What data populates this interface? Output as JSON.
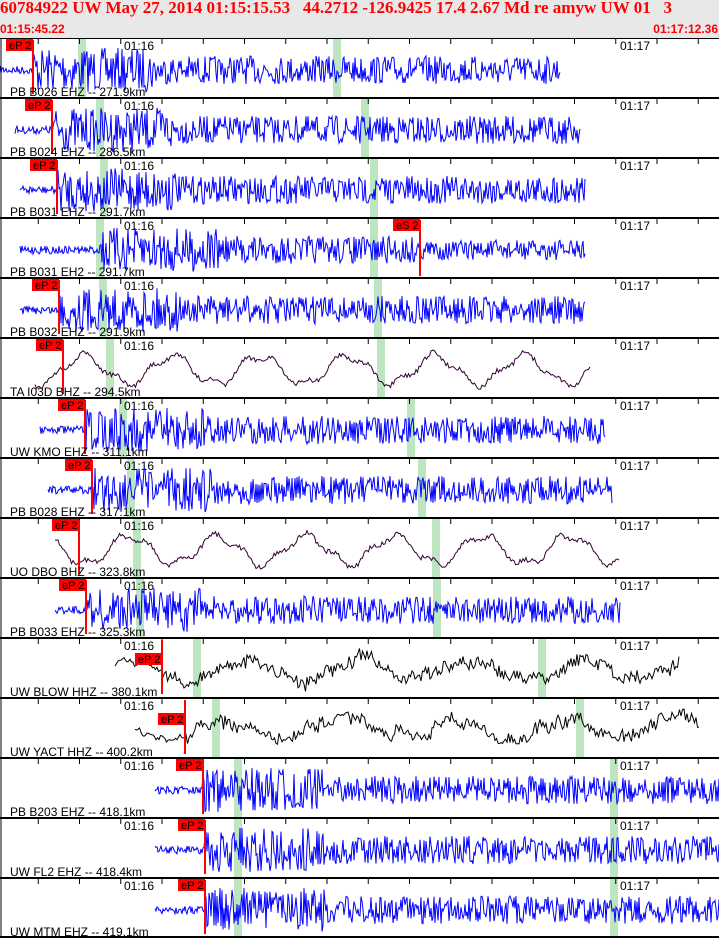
{
  "header": {
    "title": "60784922 UW May 27, 2014 01:15:15.53   44.2712 -126.9425 17.4 2.67 Md re amyw UW 01   3",
    "start_time": "01:15:45.22",
    "end_time": "01:17:12.36"
  },
  "time_labels": [
    "01:16",
    "01:17"
  ],
  "colors": {
    "header_text": "#ff0000",
    "short_period": "#0000ff",
    "broadband": "#330033",
    "hhz": "#000000",
    "pick": "#ff0000",
    "theoretical_arrival": "#bde5c0"
  },
  "traces": [
    {
      "label": "PB B026 EHZ -- 271.9km",
      "pick": "eP 2",
      "color": "#0000ff"
    },
    {
      "label": "PB B024 EHZ -- 286.5km",
      "pick": "eP 2",
      "color": "#0000ff"
    },
    {
      "label": "PB B031 EHZ -- 291.7km",
      "pick": "eP 2",
      "color": "#0000ff"
    },
    {
      "label": "PB B031 EH2 -- 291.7km",
      "pick": "eS 2",
      "color": "#0000ff"
    },
    {
      "label": "PB B032 EHZ -- 291.9km",
      "pick": "eP 2",
      "color": "#0000ff"
    },
    {
      "label": "TA I03D BHZ -- 294.5km",
      "pick": "eP 2",
      "color": "#330033"
    },
    {
      "label": "UW KMO EHZ -- 311.1km",
      "pick": "eP 2",
      "color": "#0000ff"
    },
    {
      "label": "PB B028 EHZ -- 317.1km",
      "pick": "eP 2",
      "color": "#0000ff"
    },
    {
      "label": "UO DBO BHZ -- 323.8km",
      "pick": "eP 2",
      "color": "#330033"
    },
    {
      "label": "PB B033 EHZ -- 325.3km",
      "pick": "eP 2",
      "color": "#0000ff"
    },
    {
      "label": "UW BLOW HHZ -- 380.1km",
      "pick": "eP 2",
      "color": "#000000"
    },
    {
      "label": "UW YACT HHZ -- 400.2km",
      "pick": "eP 2",
      "color": "#000000"
    },
    {
      "label": "PB B203 EHZ -- 418.1km",
      "pick": "eP 2",
      "color": "#0000ff"
    },
    {
      "label": "UW FL2 EHZ -- 418.4km",
      "pick": "eP 2",
      "color": "#0000ff"
    },
    {
      "label": "UW MTM EHZ -- 419.1km",
      "pick": "eP 2",
      "color": "#0000ff"
    }
  ]
}
